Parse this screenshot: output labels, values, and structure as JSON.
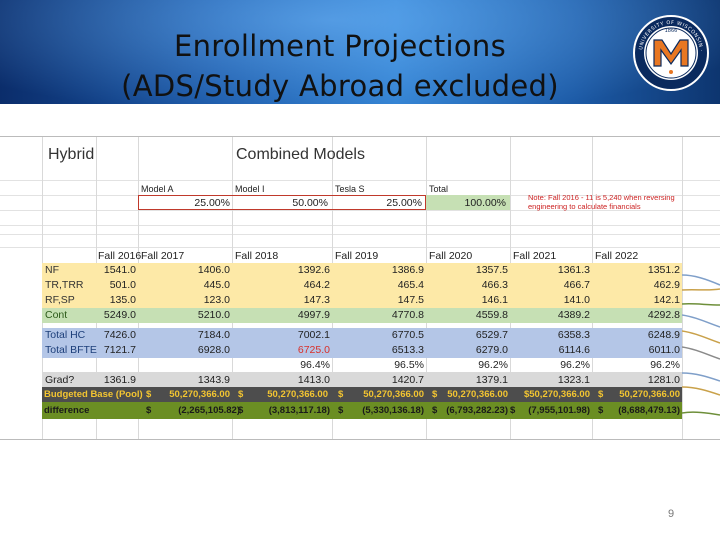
{
  "slide": {
    "title_line1": "Enrollment Projections",
    "title_line2": "(ADS/Study Abroad excluded)",
    "page_number": "9"
  },
  "logo": {
    "ring_text": "UNIVERSITY OF WISCONSIN · PLATTEVILLE",
    "year": "1866",
    "letter": "M",
    "colors": {
      "orange": "#e87722",
      "navy": "#0a2a5e"
    }
  },
  "sheet": {
    "hybrid_label": "Hybrid",
    "combined_label": "Combined Models",
    "models": [
      "Model A",
      "Model I",
      "Tesla S",
      "Total"
    ],
    "weights": [
      "25.00%",
      "50.00%",
      "25.00%",
      "100.00%"
    ],
    "note": "Note: Fall 2016 - 11 is 5,240 when reversing engineering to calculate financials",
    "years": [
      "Fall 2016",
      "Fall 2017",
      "Fall 2018",
      "Fall 2019",
      "Fall 2020",
      "Fall 2021",
      "Fall 2022"
    ],
    "rows": [
      {
        "label": "NF",
        "values": [
          "1541.0",
          "1406.0",
          "1392.6",
          "1386.9",
          "1357.5",
          "1361.3",
          "1351.2"
        ]
      },
      {
        "label": "TR,TRR",
        "values": [
          "501.0",
          "445.0",
          "464.2",
          "465.4",
          "466.3",
          "466.7",
          "462.9"
        ]
      },
      {
        "label": "RF,SP",
        "values": [
          "135.0",
          "123.0",
          "147.3",
          "147.5",
          "146.1",
          "141.0",
          "142.1"
        ]
      },
      {
        "label": "Cont",
        "values": [
          "5249.0",
          "5210.0",
          "4997.9",
          "4770.8",
          "4559.8",
          "4389.2",
          "4292.8"
        ]
      },
      {
        "label": "Total HC",
        "values": [
          "7426.0",
          "7184.0",
          "7002.1",
          "6770.5",
          "6529.7",
          "6358.3",
          "6248.9"
        ]
      },
      {
        "label": "Total BFTE",
        "values": [
          "7121.7",
          "6928.0",
          "6725.0",
          "6513.3",
          "6279.0",
          "6114.6",
          "6011.0"
        ]
      }
    ],
    "ratio_row": [
      "",
      "",
      "96.4%",
      "96.5%",
      "96.2%",
      "96.2%",
      "96.2%"
    ],
    "grad_row": {
      "label": "Grad?",
      "values": [
        "1361.9",
        "1343.9",
        "1413.0",
        "1420.7",
        "1379.1",
        "1323.1",
        "1281.0"
      ]
    },
    "budget_row": {
      "label": "Budgeted Base (Pool)",
      "cells": [
        "$",
        "50,270,366.00",
        "$",
        "50,270,366.00",
        "$",
        "50,270,366.00",
        "$",
        "50,270,366.00",
        "$50,270,366.00",
        "$",
        "50,270,366.00"
      ]
    },
    "diff_row": {
      "label": "difference",
      "cells": [
        "$",
        "(2,265,105.82)",
        "$",
        "(3,813,117.18)",
        "$",
        "(5,330,136.18)",
        "$",
        "(6,793,282.23)",
        "$",
        "(7,955,101.98)",
        "$",
        "(8,688,479.13)"
      ]
    },
    "colors": {
      "yellow": "#fde9a7",
      "green": "#c6e0b4",
      "blue": "#b4c6e7",
      "olive": "#6b8e23",
      "dark": "#4d4d4d",
      "red_value": "#d9302a"
    }
  }
}
